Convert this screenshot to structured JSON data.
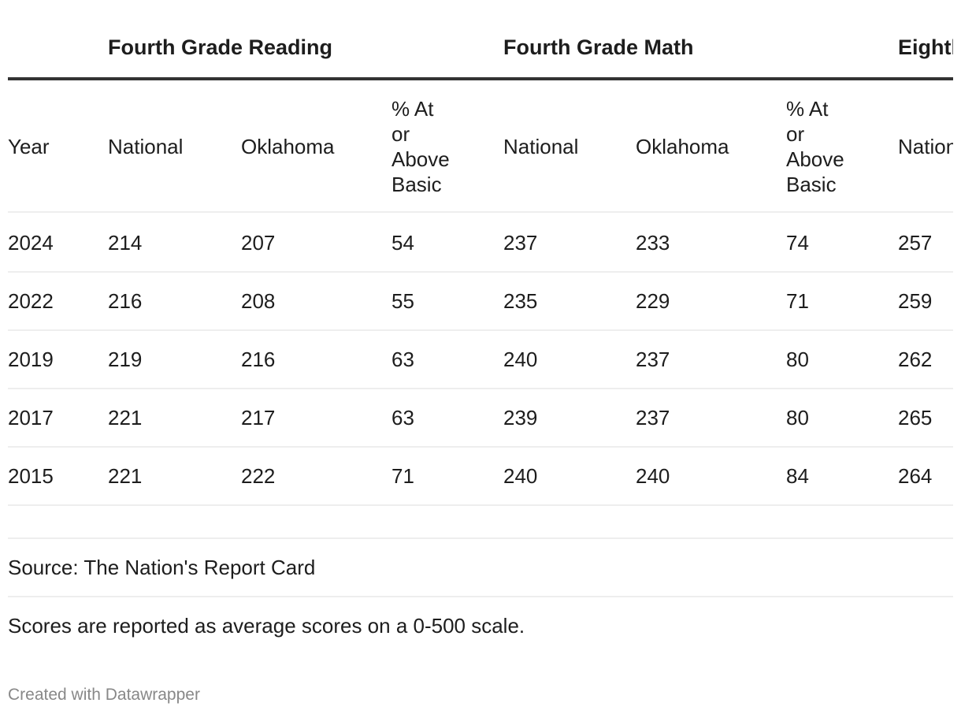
{
  "chart_data": {
    "type": "table",
    "column_groups": [
      "Fourth Grade Reading",
      "Fourth Grade Math",
      "Eighth Grade Reading"
    ],
    "columns": [
      "Year",
      "National",
      "Oklahoma",
      "% At or Above Basic",
      "National",
      "Oklahoma",
      "% At or Above Basic",
      "National"
    ],
    "column_labels_wrapped": [
      [
        "Year"
      ],
      [
        "National"
      ],
      [
        "Oklahoma"
      ],
      [
        "% At",
        "or",
        "Above",
        "Basic"
      ],
      [
        "National"
      ],
      [
        "Oklahoma"
      ],
      [
        "% At",
        "or",
        "Above",
        "Basic"
      ],
      [
        "National"
      ]
    ],
    "rows": [
      [
        "2024",
        "214",
        "207",
        "54",
        "237",
        "233",
        "74",
        "257"
      ],
      [
        "2022",
        "216",
        "208",
        "55",
        "235",
        "229",
        "71",
        "259"
      ],
      [
        "2019",
        "219",
        "216",
        "63",
        "240",
        "237",
        "80",
        "262"
      ],
      [
        "2017",
        "221",
        "217",
        "63",
        "239",
        "237",
        "80",
        "265"
      ],
      [
        "2015",
        "221",
        "222",
        "71",
        "240",
        "240",
        "84",
        "264"
      ]
    ]
  },
  "footer": {
    "source": "Source: The Nation's Report Card",
    "notes": "Scores are reported as average scores on a 0-500 scale.",
    "credit": "Created with Datawrapper"
  }
}
